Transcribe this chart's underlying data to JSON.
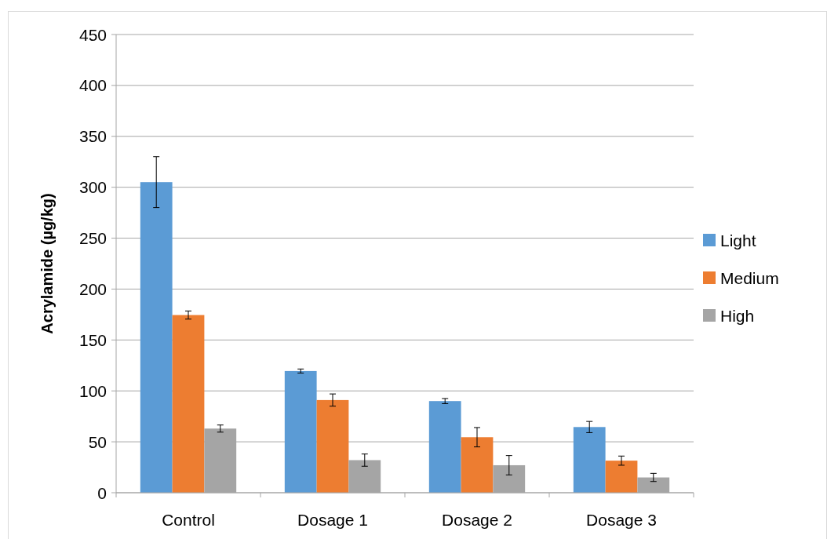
{
  "chart_data": {
    "type": "bar",
    "ylabel": "Acrylamide (µg/kg)",
    "categories": [
      "Control",
      "Dosage 1",
      "Dosage 2",
      "Dosage 3"
    ],
    "series": [
      {
        "name": "Light",
        "color": "#5b9bd5",
        "values": [
          305,
          119.5,
          90,
          64.5
        ],
        "errors": [
          25,
          2,
          2.5,
          5.5
        ]
      },
      {
        "name": "Medium",
        "color": "#ed7d31",
        "values": [
          174.5,
          91,
          54.5,
          31.5
        ],
        "errors": [
          4,
          6,
          9.5,
          4.5
        ]
      },
      {
        "name": "High",
        "color": "#a5a5a5",
        "values": [
          63,
          32,
          27,
          15
        ],
        "errors": [
          3.5,
          6,
          9.5,
          4
        ]
      }
    ],
    "ylim": [
      0,
      450
    ],
    "yticks": [
      0,
      50,
      100,
      150,
      200,
      250,
      300,
      350,
      400,
      450
    ],
    "grid": "y",
    "legend": "right"
  }
}
